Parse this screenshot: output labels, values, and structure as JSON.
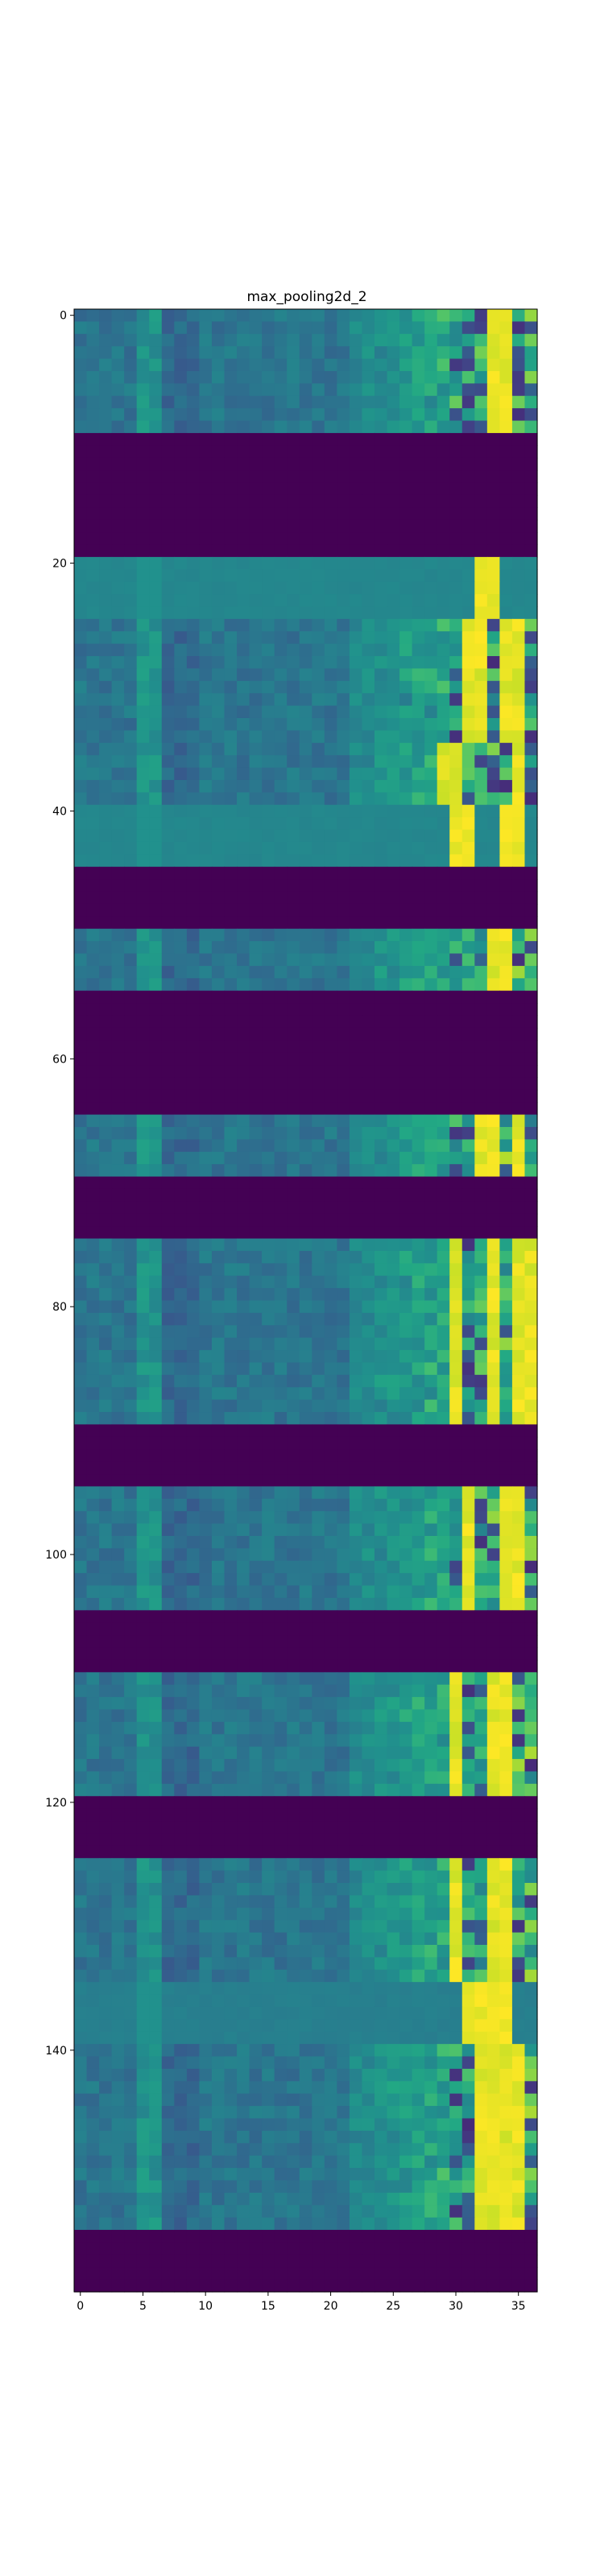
{
  "chart_data": {
    "type": "heatmap",
    "title": "max_pooling2d_2",
    "xlabel": "",
    "ylabel": "",
    "colormap": "viridis",
    "shape": {
      "rows": 160,
      "cols": 37
    },
    "xlim": [
      -0.5,
      36.5
    ],
    "ylim": [
      159.5,
      -0.5
    ],
    "x_ticks": [
      0,
      5,
      10,
      15,
      20,
      25,
      30,
      35
    ],
    "y_ticks": [
      0,
      20,
      40,
      60,
      80,
      100,
      120,
      140
    ],
    "grid": false,
    "legend": "none",
    "zero_bands": [
      [
        10,
        19
      ],
      [
        45,
        49
      ],
      [
        55,
        64
      ],
      [
        70,
        74
      ],
      [
        90,
        94
      ],
      [
        105,
        109
      ],
      [
        120,
        124
      ],
      [
        155,
        159
      ]
    ],
    "uniform_bands": [
      {
        "rows": [
          20,
          24
        ],
        "level": 0.45,
        "bright_cols": [
          32,
          33
        ]
      },
      {
        "rows": [
          40,
          44
        ],
        "level": 0.45,
        "bright_cols": [
          30,
          31,
          34,
          35
        ]
      },
      {
        "rows": [
          135,
          139
        ],
        "level": 0.42,
        "bright_cols": [
          31,
          32,
          33,
          34
        ]
      }
    ],
    "bright_cols_by_band": [
      {
        "rows": [
          0,
          9
        ],
        "cols": [
          33,
          34
        ]
      },
      {
        "rows": [
          25,
          34
        ],
        "cols": [
          31,
          32,
          34,
          35
        ]
      },
      {
        "rows": [
          35,
          39
        ],
        "cols": [
          29,
          30,
          35
        ]
      },
      {
        "rows": [
          50,
          54
        ],
        "cols": [
          33,
          34
        ]
      },
      {
        "rows": [
          65,
          69
        ],
        "cols": [
          32,
          33,
          35
        ]
      },
      {
        "rows": [
          75,
          89
        ],
        "cols": [
          30,
          33,
          35,
          36
        ]
      },
      {
        "rows": [
          95,
          104
        ],
        "cols": [
          31,
          34,
          35
        ]
      },
      {
        "rows": [
          110,
          119
        ],
        "cols": [
          30,
          33,
          34
        ]
      },
      {
        "rows": [
          125,
          134
        ],
        "cols": [
          30,
          33,
          34
        ]
      },
      {
        "rows": [
          140,
          154
        ],
        "cols": [
          32,
          33,
          34,
          35
        ]
      }
    ]
  }
}
